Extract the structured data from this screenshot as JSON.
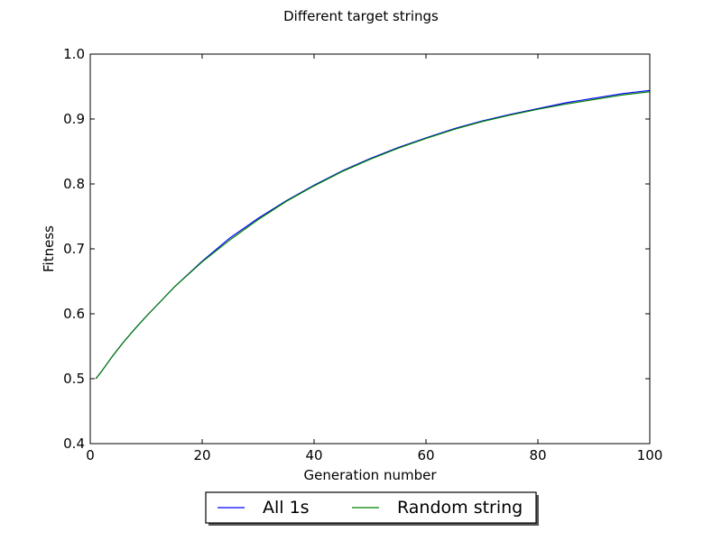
{
  "chart_data": {
    "type": "line",
    "title": "Different target strings",
    "xlabel": "Generation number",
    "ylabel": "Fitness",
    "xlim": [
      0,
      100
    ],
    "ylim": [
      0.4,
      1.0
    ],
    "x_ticks": [
      0,
      20,
      40,
      60,
      80,
      100
    ],
    "y_ticks": [
      0.4,
      0.5,
      0.6,
      0.7,
      0.8,
      0.9,
      1.0
    ],
    "x_tick_labels": [
      "0",
      "20",
      "40",
      "60",
      "80",
      "100"
    ],
    "y_tick_labels": [
      "0.4",
      "0.5",
      "0.6",
      "0.7",
      "0.8",
      "0.9",
      "1.0"
    ],
    "grid": false,
    "legend_position": "bottom-center-outside",
    "x": [
      1,
      2,
      4,
      6,
      8,
      10,
      15,
      20,
      25,
      30,
      35,
      40,
      45,
      50,
      55,
      60,
      65,
      70,
      75,
      80,
      85,
      90,
      95,
      100
    ],
    "series": [
      {
        "name": "All 1s",
        "color": "#0000ff",
        "values": [
          0.5,
          0.511,
          0.535,
          0.557,
          0.577,
          0.596,
          0.641,
          0.681,
          0.717,
          0.747,
          0.774,
          0.798,
          0.82,
          0.839,
          0.856,
          0.871,
          0.885,
          0.897,
          0.907,
          0.916,
          0.925,
          0.932,
          0.939,
          0.944
        ]
      },
      {
        "name": "Random string",
        "color": "#008000",
        "values": [
          0.5,
          0.511,
          0.535,
          0.557,
          0.577,
          0.596,
          0.641,
          0.68,
          0.714,
          0.745,
          0.773,
          0.797,
          0.819,
          0.838,
          0.855,
          0.87,
          0.884,
          0.896,
          0.906,
          0.915,
          0.923,
          0.93,
          0.937,
          0.942
        ]
      }
    ]
  }
}
